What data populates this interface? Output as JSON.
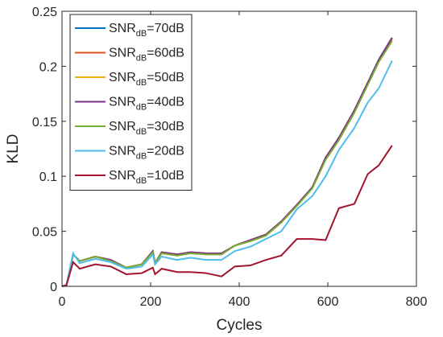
{
  "chart_data": {
    "type": "line",
    "xlabel": "Cycles",
    "ylabel": "KLD",
    "x": [
      0,
      10,
      25,
      40,
      75,
      110,
      145,
      180,
      205,
      210,
      225,
      260,
      290,
      325,
      360,
      390,
      425,
      460,
      495,
      530,
      565,
      595,
      625,
      660,
      690,
      715,
      745
    ],
    "xlim": [
      0,
      800
    ],
    "xticks": [
      0,
      200,
      400,
      600,
      800
    ],
    "ylim": [
      0,
      0.25
    ],
    "yticks": [
      0,
      0.05,
      0.1,
      0.15,
      0.2,
      0.25
    ],
    "grid": false,
    "legend": "northwest",
    "series": [
      {
        "name": "SNR_{dB}=70dB",
        "color": "#0072BD",
        "values": [
          0,
          0.001,
          0.029,
          0.023,
          0.027,
          0.024,
          0.017,
          0.02,
          0.032,
          0.021,
          0.031,
          0.029,
          0.031,
          0.03,
          0.03,
          0.037,
          0.042,
          0.047,
          0.059,
          0.074,
          0.09,
          0.117,
          0.135,
          0.16,
          0.185,
          0.206,
          0.226
        ]
      },
      {
        "name": "SNR_{dB}=60dB",
        "color": "#D95319",
        "values": [
          0,
          0.001,
          0.029,
          0.023,
          0.027,
          0.024,
          0.017,
          0.02,
          0.032,
          0.021,
          0.031,
          0.029,
          0.031,
          0.03,
          0.03,
          0.037,
          0.042,
          0.047,
          0.059,
          0.074,
          0.09,
          0.117,
          0.135,
          0.16,
          0.185,
          0.205,
          0.225
        ]
      },
      {
        "name": "SNR_{dB}=50dB",
        "color": "#EDB120",
        "values": [
          0,
          0.001,
          0.029,
          0.023,
          0.027,
          0.024,
          0.017,
          0.02,
          0.032,
          0.021,
          0.031,
          0.029,
          0.031,
          0.03,
          0.03,
          0.037,
          0.042,
          0.047,
          0.059,
          0.074,
          0.09,
          0.117,
          0.135,
          0.16,
          0.184,
          0.205,
          0.224
        ]
      },
      {
        "name": "SNR_{dB}=40dB",
        "color": "#7E2F8E",
        "values": [
          0,
          0.001,
          0.029,
          0.023,
          0.027,
          0.024,
          0.017,
          0.02,
          0.032,
          0.021,
          0.031,
          0.029,
          0.031,
          0.03,
          0.03,
          0.037,
          0.042,
          0.047,
          0.059,
          0.074,
          0.09,
          0.117,
          0.135,
          0.16,
          0.185,
          0.206,
          0.226
        ]
      },
      {
        "name": "SNR_{dB}=30dB",
        "color": "#77AC30",
        "values": [
          0,
          0.001,
          0.029,
          0.023,
          0.027,
          0.023,
          0.017,
          0.02,
          0.031,
          0.021,
          0.03,
          0.028,
          0.03,
          0.029,
          0.029,
          0.037,
          0.041,
          0.046,
          0.058,
          0.073,
          0.089,
          0.115,
          0.133,
          0.158,
          0.183,
          0.204,
          0.223
        ]
      },
      {
        "name": "SNR_{dB}=20dB",
        "color": "#4DBEEE",
        "values": [
          0,
          0.001,
          0.03,
          0.021,
          0.025,
          0.022,
          0.016,
          0.018,
          0.029,
          0.02,
          0.027,
          0.024,
          0.026,
          0.024,
          0.024,
          0.032,
          0.036,
          0.043,
          0.05,
          0.07,
          0.082,
          0.1,
          0.124,
          0.144,
          0.167,
          0.18,
          0.205
        ]
      },
      {
        "name": "SNR_{dB}=10dB",
        "color": "#A2142F",
        "values": [
          0,
          0.001,
          0.022,
          0.016,
          0.02,
          0.018,
          0.011,
          0.012,
          0.017,
          0.011,
          0.016,
          0.013,
          0.013,
          0.012,
          0.009,
          0.018,
          0.019,
          0.024,
          0.028,
          0.043,
          0.043,
          0.042,
          0.071,
          0.075,
          0.102,
          0.11,
          0.128
        ]
      }
    ]
  }
}
